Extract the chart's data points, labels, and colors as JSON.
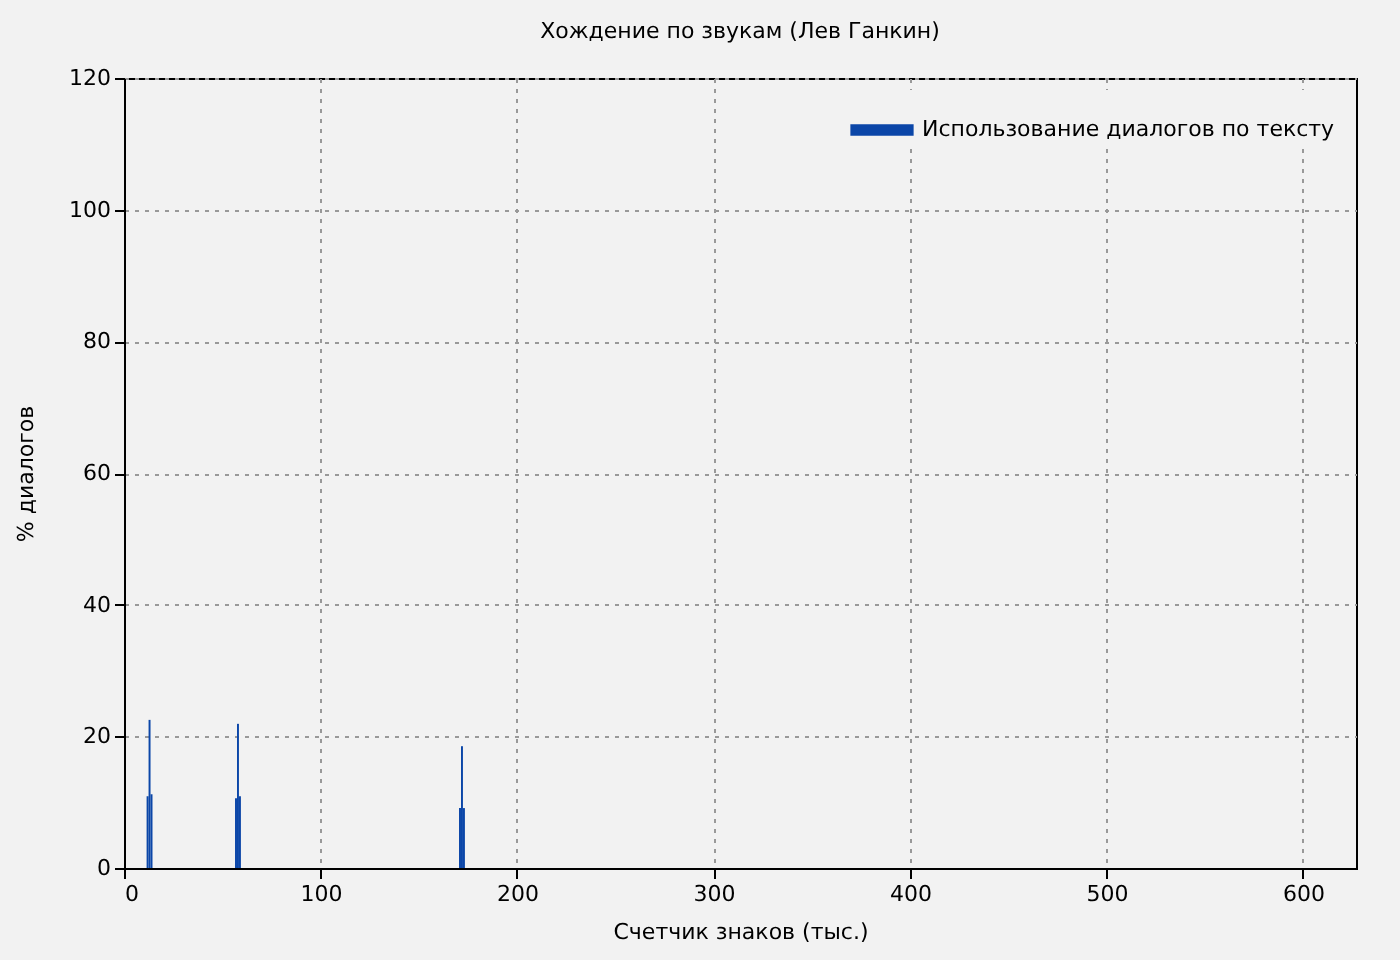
{
  "chart_data": {
    "type": "bar",
    "title": "Хождение по звукам (Лев Ганкин)",
    "xlabel": "Счетчик знаков (тыс.)",
    "ylabel": "% диалогов",
    "x": [
      12,
      13,
      14,
      57,
      58,
      59,
      171,
      172,
      173
    ],
    "series": [
      {
        "name": "Использование диалогов по тексту",
        "color": "#0b46a8",
        "values": [
          10.9,
          22.5,
          11.2,
          10.6,
          21.9,
          10.9,
          9.1,
          18.5,
          9.1
        ]
      }
    ],
    "xlim": [
      0,
      627
    ],
    "xticks": [
      0,
      100,
      200,
      300,
      400,
      500,
      600
    ],
    "ylim": [
      0,
      120
    ],
    "yticks": [
      0,
      20,
      40,
      60,
      80,
      100,
      120
    ],
    "grid": true,
    "legend": "top right"
  }
}
